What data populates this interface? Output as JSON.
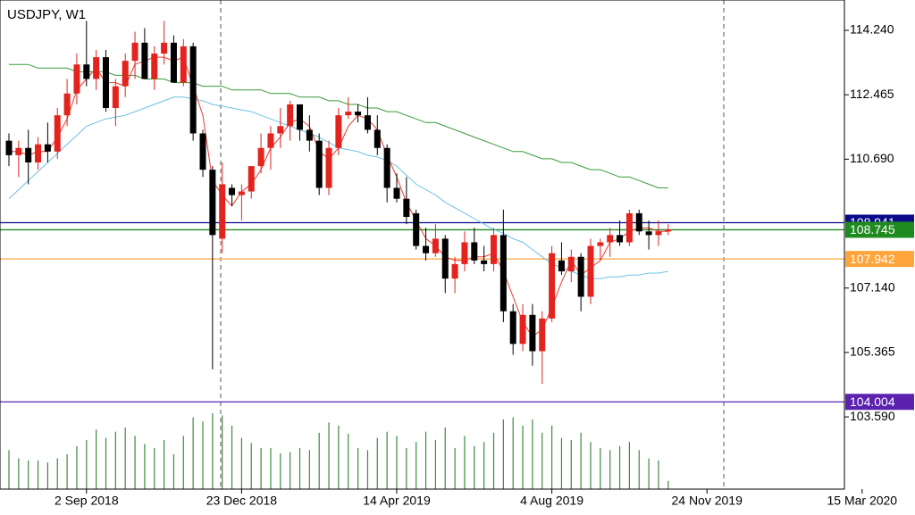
{
  "chart_data": {
    "type": "candlestick",
    "title": "USDJPY, W1",
    "categories": [
      null,
      null,
      null,
      null,
      null,
      null,
      null,
      null,
      "2 Sep 2018",
      null,
      null,
      null,
      null,
      null,
      null,
      null,
      null,
      null,
      null,
      null,
      null,
      null,
      null,
      null,
      "23 Dec 2018",
      null,
      null,
      null,
      null,
      null,
      null,
      null,
      null,
      null,
      null,
      null,
      null,
      null,
      null,
      null,
      "14 Apr 2019",
      null,
      null,
      null,
      null,
      null,
      null,
      null,
      null,
      null,
      null,
      null,
      null,
      null,
      null,
      null,
      "4 Aug 2019",
      null,
      null,
      null,
      null,
      null,
      null,
      null,
      null,
      null,
      null,
      null,
      null,
      null,
      null,
      null,
      "24 Nov 2019",
      null,
      null,
      null,
      null,
      null,
      null,
      null,
      null,
      null,
      null,
      null,
      null,
      null,
      null,
      null,
      "15 Mar 2020"
    ],
    "open": [
      111.2,
      110.8,
      111.0,
      110.6,
      111.1,
      110.9,
      111.9,
      112.5,
      113.3,
      112.9,
      113.5,
      112.1,
      112.7,
      113.4,
      113.9,
      112.9,
      113.6,
      113.9,
      112.8,
      113.8,
      111.4,
      110.4,
      108.5,
      109.9,
      109.7,
      109.8,
      110.5,
      111.0,
      111.4,
      111.6,
      112.2,
      111.5,
      111.2,
      109.9,
      111.0,
      111.9,
      112.0,
      111.9,
      111.5,
      111.0,
      109.9,
      109.6,
      109.2,
      108.3,
      108.1,
      108.5,
      107.4,
      107.8,
      108.4,
      107.9,
      107.8,
      108.6,
      106.5,
      105.6,
      106.4,
      105.4,
      106.3,
      107.9,
      107.6,
      108.0,
      106.9,
      108.3,
      108.4,
      108.6,
      108.4,
      109.2,
      108.7,
      108.6,
      108.7,
      null,
      null,
      null,
      null,
      null,
      null,
      null,
      null,
      null,
      null,
      null,
      null,
      null,
      null,
      null,
      null,
      null,
      null,
      null,
      null
    ],
    "high": [
      111.4,
      111.2,
      111.5,
      111.3,
      111.7,
      112.1,
      112.9,
      113.6,
      114.5,
      113.7,
      113.7,
      112.9,
      113.6,
      114.2,
      114.3,
      113.8,
      114.5,
      114.1,
      114.0,
      113.9,
      111.5,
      110.5,
      110.6,
      110.0,
      110.0,
      110.5,
      111.4,
      111.6,
      112.1,
      112.3,
      112.2,
      111.9,
      111.4,
      111.2,
      112.1,
      112.4,
      112.2,
      112.4,
      111.9,
      111.1,
      110.3,
      110.2,
      109.3,
      108.8,
      108.9,
      108.6,
      108.0,
      108.7,
      108.8,
      108.3,
      108.8,
      109.3,
      106.7,
      106.7,
      106.7,
      106.5,
      108.3,
      108.4,
      108.2,
      108.1,
      108.5,
      108.5,
      108.8,
      109.0,
      109.3,
      109.3,
      109.0,
      109.0,
      108.9,
      null,
      null,
      null,
      null,
      null,
      null,
      null,
      null,
      null,
      null,
      null,
      null,
      null,
      null,
      null,
      null,
      null,
      null,
      null,
      null
    ],
    "low": [
      110.5,
      110.2,
      110.0,
      110.4,
      110.6,
      110.7,
      111.6,
      112.2,
      112.7,
      112.6,
      112.0,
      111.6,
      112.4,
      112.9,
      112.9,
      112.6,
      113.3,
      112.8,
      112.7,
      111.2,
      110.2,
      104.9,
      108.1,
      109.4,
      109.0,
      109.6,
      110.3,
      110.4,
      111.0,
      111.2,
      111.2,
      110.9,
      109.7,
      109.7,
      110.8,
      111.8,
      111.7,
      111.4,
      110.8,
      109.5,
      109.5,
      108.9,
      108.2,
      107.9,
      108.0,
      107.0,
      107.0,
      107.6,
      107.8,
      107.6,
      107.6,
      106.2,
      105.3,
      105.4,
      105.0,
      104.5,
      106.2,
      107.5,
      107.3,
      106.5,
      106.7,
      107.9,
      108.0,
      108.3,
      108.3,
      108.6,
      108.2,
      108.3,
      108.6,
      null,
      null,
      null,
      null,
      null,
      null,
      null,
      null,
      null,
      null,
      null,
      null,
      null,
      null,
      null,
      null,
      null,
      null,
      null,
      null
    ],
    "close": [
      110.8,
      111.0,
      110.6,
      111.1,
      110.9,
      111.9,
      112.5,
      113.3,
      112.9,
      113.5,
      112.1,
      112.7,
      113.4,
      113.9,
      112.9,
      113.6,
      113.9,
      112.8,
      113.8,
      111.4,
      110.4,
      108.6,
      110.0,
      109.7,
      109.8,
      110.5,
      111.0,
      111.4,
      111.6,
      112.2,
      111.5,
      111.2,
      109.9,
      111.0,
      111.9,
      112.0,
      111.9,
      111.5,
      111.0,
      109.9,
      109.6,
      109.1,
      108.3,
      108.1,
      108.5,
      107.4,
      107.8,
      108.4,
      107.9,
      107.8,
      108.6,
      106.5,
      105.6,
      106.4,
      105.4,
      106.3,
      108.1,
      107.6,
      108.0,
      106.9,
      108.3,
      108.4,
      108.6,
      108.4,
      109.2,
      108.7,
      108.6,
      108.7,
      108.75,
      null,
      null,
      null,
      null,
      null,
      null,
      null,
      null,
      null,
      null,
      null,
      null,
      null,
      null,
      null,
      null,
      null,
      null,
      null,
      null
    ],
    "volume": [
      38,
      30,
      28,
      28,
      26,
      30,
      34,
      42,
      48,
      58,
      50,
      56,
      60,
      52,
      44,
      40,
      48,
      34,
      52,
      70,
      66,
      74,
      72,
      62,
      50,
      45,
      40,
      40,
      35,
      36,
      40,
      38,
      55,
      65,
      62,
      54,
      40,
      38,
      50,
      56,
      52,
      40,
      46,
      56,
      48,
      60,
      40,
      52,
      42,
      46,
      55,
      68,
      70,
      62,
      68,
      55,
      62,
      50,
      48,
      55,
      46,
      40,
      38,
      42,
      46,
      38,
      30,
      28,
      8,
      null,
      null,
      null,
      null,
      null,
      null,
      null,
      null,
      null,
      null,
      null,
      null,
      null,
      null,
      null,
      null,
      null,
      null,
      null,
      null
    ],
    "up_color": "#e3231d",
    "down_color": "#000000",
    "volume_color": "#3d8a3d",
    "lines": [
      {
        "color": "#3a9a3a",
        "values": [
          113.3,
          113.3,
          113.3,
          113.2,
          113.2,
          113.2,
          113.2,
          113.1,
          113.1,
          113.1,
          113.1,
          113.0,
          113.0,
          113.0,
          112.9,
          112.9,
          112.9,
          112.8,
          112.8,
          112.8,
          112.7,
          112.7,
          112.7,
          112.6,
          112.6,
          112.6,
          112.6,
          112.5,
          112.5,
          112.5,
          112.4,
          112.4,
          112.4,
          112.3,
          112.3,
          112.2,
          112.2,
          112.1,
          112.1,
          112.0,
          112.0,
          111.9,
          111.8,
          111.7,
          111.7,
          111.6,
          111.5,
          111.4,
          111.3,
          111.2,
          111.1,
          111.0,
          110.9,
          110.9,
          110.8,
          110.7,
          110.7,
          110.6,
          110.6,
          110.5,
          110.4,
          110.4,
          110.3,
          110.2,
          110.2,
          110.1,
          110.0,
          109.9,
          109.9,
          null,
          null,
          null,
          null,
          null,
          null,
          null,
          null,
          null,
          null,
          null,
          null,
          null,
          null,
          null,
          null,
          null,
          null,
          null,
          null
        ]
      },
      {
        "color": "#6cc3e3",
        "values": [
          109.6,
          109.85,
          110.1,
          110.35,
          110.6,
          110.85,
          111.1,
          111.35,
          111.6,
          111.7,
          111.8,
          111.85,
          111.9,
          112.0,
          112.1,
          112.2,
          112.3,
          112.4,
          112.4,
          112.35,
          112.3,
          112.2,
          112.15,
          112.1,
          112.05,
          112.0,
          111.9,
          111.8,
          111.7,
          111.6,
          111.5,
          111.4,
          111.3,
          111.15,
          111.0,
          110.95,
          110.9,
          110.8,
          110.75,
          110.65,
          110.5,
          110.25,
          110.0,
          109.85,
          109.7,
          109.5,
          109.35,
          109.2,
          109.05,
          108.9,
          108.75,
          108.65,
          108.5,
          108.4,
          108.2,
          108.0,
          107.8,
          107.7,
          107.6,
          107.5,
          107.4,
          107.4,
          107.45,
          107.45,
          107.5,
          107.5,
          107.55,
          107.55,
          107.6,
          null,
          null,
          null,
          null,
          null,
          null,
          null,
          null,
          null,
          null,
          null,
          null,
          null,
          null,
          null,
          null,
          null,
          null,
          null,
          null
        ]
      },
      {
        "color": "#e8392e",
        "values": [
          110.9,
          110.9,
          110.8,
          110.9,
          110.9,
          111.3,
          111.8,
          112.6,
          112.9,
          113.2,
          112.8,
          112.8,
          112.7,
          113.3,
          113.4,
          113.5,
          113.5,
          113.4,
          113.5,
          112.7,
          111.9,
          110.1,
          109.7,
          109.4,
          109.8,
          110.0,
          110.4,
          111.0,
          111.3,
          111.7,
          111.8,
          111.6,
          110.9,
          110.7,
          111.0,
          111.6,
          111.9,
          111.8,
          111.5,
          110.8,
          110.2,
          109.5,
          109.0,
          108.5,
          108.3,
          108.0,
          107.9,
          107.9,
          108.0,
          108.0,
          108.1,
          107.6,
          106.9,
          106.2,
          105.8,
          106.0,
          106.6,
          107.3,
          107.9,
          107.5,
          107.7,
          107.9,
          108.4,
          108.5,
          108.7,
          108.8,
          108.8,
          108.7,
          108.7,
          null,
          null,
          null,
          null,
          null,
          null,
          null,
          null,
          null,
          null,
          null,
          null,
          null,
          null,
          null,
          null,
          null,
          null,
          null,
          null
        ]
      }
    ],
    "levels": [
      {
        "value": 108.941,
        "color": "#0b0b8a"
      },
      {
        "value": 108.745,
        "color": "#1f8a1f"
      },
      {
        "value": 107.942,
        "color": "#ffa53c"
      },
      {
        "value": 104.004,
        "color": "#5b22b0"
      }
    ],
    "ylim": [
      101.6,
      115.076
    ],
    "yticks": [
      {
        "value": 114.24,
        "label": "114.240"
      },
      112.465,
      {
        "value": 110.69,
        "label": "110.690"
      },
      {
        "value": 107.14,
        "label": "107.140"
      },
      105.365,
      {
        "value": 103.59,
        "label": "103.590"
      }
    ]
  }
}
